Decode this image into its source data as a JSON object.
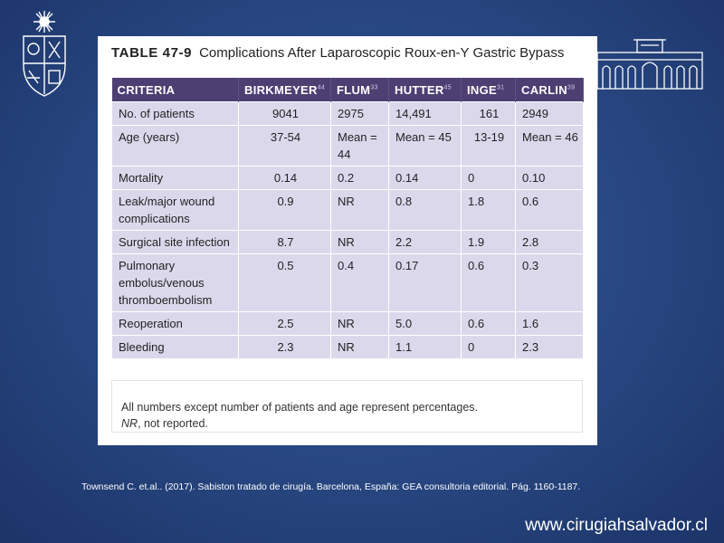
{
  "table": {
    "label": "TABLE 47-9",
    "title": "Complications After Laparoscopic Roux-en-Y Gastric Bypass",
    "headers": [
      {
        "text": "CRITERIA",
        "ref": ""
      },
      {
        "text": "BIRKMEYER",
        "ref": "44"
      },
      {
        "text": "FLUM",
        "ref": "33"
      },
      {
        "text": "HUTTER",
        "ref": "45"
      },
      {
        "text": "INGE",
        "ref": "31"
      },
      {
        "text": "CARLIN",
        "ref": "39"
      }
    ],
    "rows": [
      [
        "No. of patients",
        "9041",
        "2975",
        "14,491",
        "161",
        "2949"
      ],
      [
        "Age (years)",
        "37-54",
        "Mean = 44",
        "Mean = 45",
        "13-19",
        "Mean = 46"
      ],
      [
        "Mortality",
        "0.14",
        "0.2",
        "0.14",
        "0",
        "0.10"
      ],
      [
        "Leak/major wound complications",
        "0.9",
        "NR",
        "0.8",
        "1.8",
        "0.6"
      ],
      [
        "Surgical site infection",
        "8.7",
        "NR",
        "2.2",
        "1.9",
        "2.8"
      ],
      [
        "Pulmonary embolus/venous thromboembolism",
        "0.5",
        "0.4",
        "0.17",
        "0.6",
        "0.3"
      ],
      [
        "Reoperation",
        "2.5",
        "NR",
        "5.0",
        "0.6",
        "1.6"
      ],
      [
        "Bleeding",
        "2.3",
        "NR",
        "1.1",
        "0",
        "2.3"
      ]
    ],
    "footnote": "All numbers except number of patients and age represent percentages.",
    "footnote_nr_abbr": "NR",
    "footnote_nr_text": ", not reported."
  },
  "citation": "Townsend C. et.al.. (2017). Sabiston tratado de cirugía. Barcelona, España: GEA consultoria editorial. Pág. 1160-1187.",
  "website": "www.cirugiahsalvador.cl",
  "icons": {
    "logo": "university-crest-icon",
    "building": "university-building-icon"
  },
  "colors": {
    "header_bg": "#4d3f72",
    "cell_bg": "#dcd8ec",
    "background": "#2a4a86"
  }
}
